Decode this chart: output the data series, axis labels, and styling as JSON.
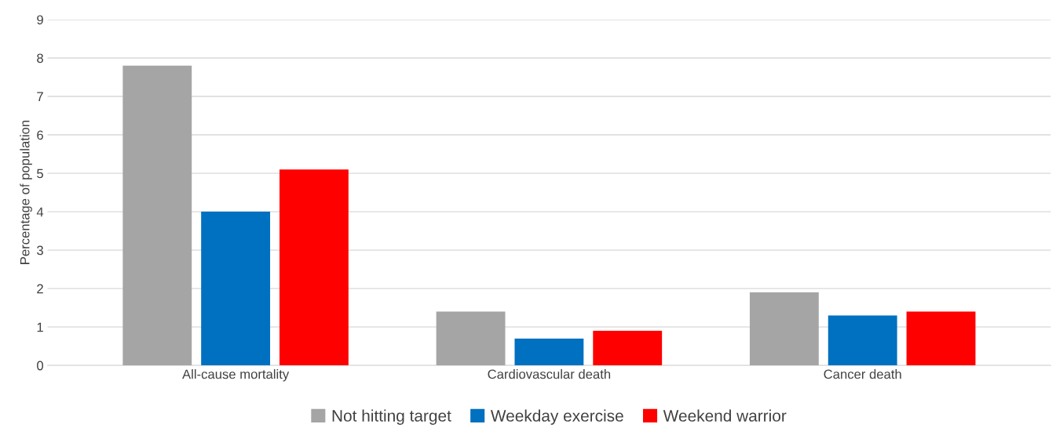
{
  "chart_data": {
    "type": "bar",
    "ylabel": "Percentage of population",
    "categories": [
      "All-cause mortality",
      "Cardiovascular death",
      "Cancer death"
    ],
    "series": [
      {
        "name": "Not hitting target",
        "color": "#a5a5a5",
        "values": [
          7.8,
          1.4,
          1.9
        ]
      },
      {
        "name": "Weekday exercise",
        "color": "#0070c0",
        "values": [
          4.0,
          0.7,
          1.3
        ]
      },
      {
        "name": "Weekend warrior",
        "color": "#ff0000",
        "values": [
          5.1,
          0.9,
          1.4
        ]
      }
    ],
    "ylim": [
      0,
      9
    ],
    "yticks": [
      0,
      1,
      2,
      3,
      4,
      5,
      6,
      7,
      8,
      9
    ],
    "grid": "y",
    "legend": "bottom"
  }
}
